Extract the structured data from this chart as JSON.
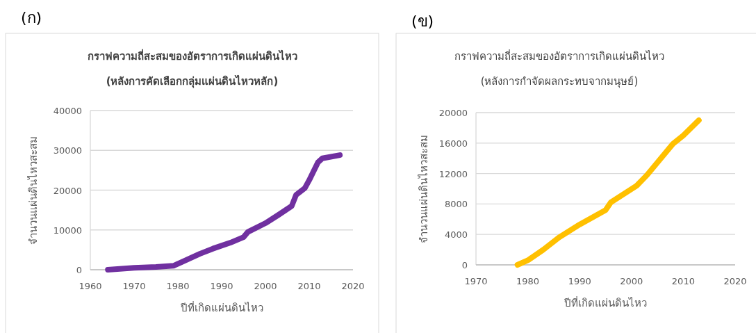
{
  "chart_data": [
    {
      "type": "line",
      "title": "กราฟความถี่สะสมของอัตราการเกิดแผ่นดินไหว",
      "subtitle": "(หลังการคัดเลือกกลุ่มแผ่นดินไหวหลัก)",
      "xlabel": "ปีที่เกิดแผ่นดินไหว",
      "ylabel": "จำนวนแผ่นดินไหวสะสม",
      "annotations": [
        "(ก)"
      ],
      "series": [
        {
          "color": "#7030a0",
          "x": [
            1964,
            1970,
            1975,
            1979,
            1981,
            1985,
            1988,
            1992,
            1995,
            1996,
            2000,
            2003,
            2006,
            2007,
            2009,
            2010,
            2012,
            2013,
            2017
          ],
          "values": [
            0,
            500,
            700,
            1000,
            2000,
            4000,
            5300,
            6800,
            8200,
            9500,
            11700,
            13800,
            16000,
            18800,
            20500,
            22500,
            27000,
            28000,
            28800
          ]
        }
      ],
      "xlim": [
        1960,
        2020
      ],
      "xticks": [
        1960,
        1970,
        1980,
        1990,
        2000,
        2010,
        2020
      ],
      "ylim": [
        0,
        40000
      ],
      "yticks": [
        0,
        10000,
        20000,
        30000,
        40000
      ],
      "grid": "y",
      "marker": "none",
      "line_style": "solid"
    },
    {
      "type": "line",
      "title": "กราฟความถี่สะสมของอัตราการเกิดแผ่นดินไหว",
      "subtitle": "(หลังการกำจัดผลกระทบจากมนุษย์)",
      "xlabel": "ปีที่เกิดแผ่นดินไหว",
      "ylabel": "จำนวนแผ่นดินไหวสะสม",
      "annotations": [
        "(ข)"
      ],
      "series": [
        {
          "color": "#ffc000",
          "x": [
            1978,
            1980,
            1983,
            1986,
            1990,
            1995,
            1996,
            2001,
            2003,
            2008,
            2010,
            2013
          ],
          "values": [
            0,
            600,
            2000,
            3600,
            5300,
            7200,
            8200,
            10400,
            11800,
            15900,
            17000,
            19000
          ]
        }
      ],
      "xlim": [
        1970,
        2020
      ],
      "xticks": [
        1970,
        1980,
        1990,
        2000,
        2010,
        2020
      ],
      "ylim": [
        0,
        20000
      ],
      "yticks": [
        0,
        4000,
        8000,
        12000,
        16000,
        20000
      ],
      "grid": "y",
      "marker": "none",
      "line_style": "solid"
    }
  ]
}
